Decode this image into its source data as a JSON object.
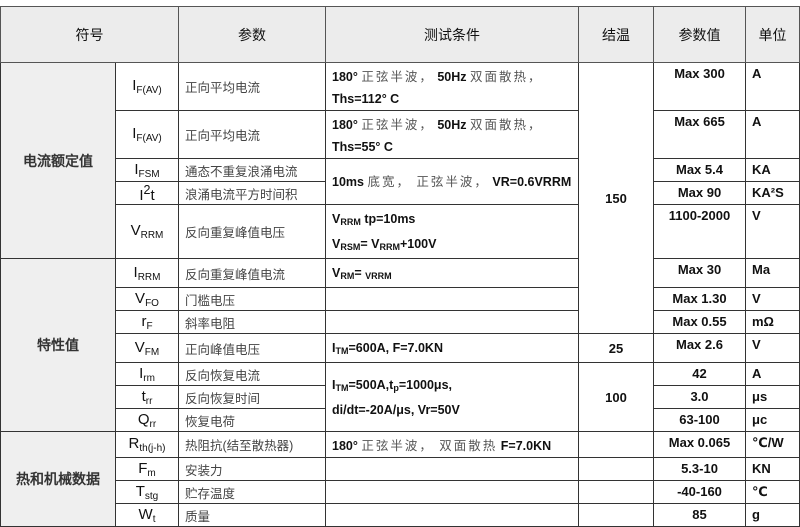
{
  "headers": [
    "符号",
    "参数",
    "测试条件",
    "结温",
    "参数值",
    "单位"
  ],
  "groups": {
    "rated_current": "电流额定值",
    "characteristics": "特性值",
    "thermal_mechanical": "热和机械数据"
  },
  "rows": [
    {
      "symbol": [
        {
          "t": "I"
        },
        {
          "t": "F(AV)",
          "sub": true
        }
      ],
      "param": "正向平均电流",
      "value": "Max 300",
      "unit": "A"
    },
    {
      "symbol": [
        {
          "t": "I"
        },
        {
          "t": "F(AV)",
          "sub": true
        }
      ],
      "param": "正向平均电流",
      "value": "Max 665",
      "unit": "A"
    },
    {
      "symbol": [
        {
          "t": "I"
        },
        {
          "t": "FSM",
          "sub": true
        }
      ],
      "param": "通态不重复浪涌电流",
      "value": "Max 5.4",
      "unit": "KA"
    },
    {
      "symbol": [
        {
          "t": "I"
        },
        {
          "t": "2",
          "sup": true
        },
        {
          "t": "t"
        }
      ],
      "param": "浪涌电流平方时间积",
      "value": "Max 90",
      "unit": "KA²S"
    },
    {
      "symbol": [
        {
          "t": "V"
        },
        {
          "t": "RRM",
          "sub": true
        }
      ],
      "param": "反向重复峰值电压",
      "value": "1100-2000",
      "unit": "V"
    },
    {
      "symbol": [
        {
          "t": "I"
        },
        {
          "t": "RRM",
          "sub": true
        }
      ],
      "param": "反向重复峰值电流",
      "value": "Max 30",
      "unit": "Ma"
    },
    {
      "symbol": [
        {
          "t": "V"
        },
        {
          "t": "FO",
          "sub": true
        }
      ],
      "param": "门槛电压",
      "value": "Max 1.30",
      "unit": "V"
    },
    {
      "symbol": [
        {
          "t": "r"
        },
        {
          "t": "F",
          "sub": true
        }
      ],
      "param": "斜率电阻",
      "value": "Max 0.55",
      "unit": "mΩ"
    },
    {
      "symbol": [
        {
          "t": "V"
        },
        {
          "t": "FM",
          "sub": true
        }
      ],
      "param": "正向峰值电压",
      "value": "Max 2.6",
      "unit": "V"
    },
    {
      "symbol": [
        {
          "t": "I"
        },
        {
          "t": "rm",
          "sub": true
        }
      ],
      "param": "反向恢复电流",
      "value": "42",
      "unit": "A"
    },
    {
      "symbol": [
        {
          "t": "t"
        },
        {
          "t": "rr",
          "sub": true
        }
      ],
      "param": "反向恢复时间",
      "value": "3.0",
      "unit": "μs"
    },
    {
      "symbol": [
        {
          "t": "Q"
        },
        {
          "t": "rr",
          "sub": true
        }
      ],
      "param": "恢复电荷",
      "value": "63-100",
      "unit": "μc"
    },
    {
      "symbol": [
        {
          "t": "R"
        },
        {
          "t": "th(j-h)",
          "sub": true
        }
      ],
      "param": "热阻抗(结至散热器)",
      "value": "Max 0.065",
      "unit": "℃/W"
    },
    {
      "symbol": [
        {
          "t": "F"
        },
        {
          "t": "m",
          "sub": true
        }
      ],
      "param": "安装力",
      "value": "5.3-10",
      "unit": "KN"
    },
    {
      "symbol": [
        {
          "t": "T"
        },
        {
          "t": "stg",
          "sub": true
        }
      ],
      "param": "贮存温度",
      "value": "-40-160",
      "unit": "℃"
    },
    {
      "symbol": [
        {
          "t": "W"
        },
        {
          "t": "t",
          "sub": true
        }
      ],
      "param": "质量",
      "value": "85",
      "unit": "g"
    }
  ],
  "conditions": {
    "c0": [
      [
        {
          "t": "180° "
        },
        {
          "t": "正弦半波，",
          "cn": true
        },
        {
          "t": "  50Hz "
        },
        {
          "t": "双面散热，",
          "cn": true
        }
      ],
      [
        {
          "t": "Ths=112° C"
        }
      ]
    ],
    "c1": [
      [
        {
          "t": "180° "
        },
        {
          "t": "正弦半波，",
          "cn": true
        },
        {
          "t": "  50Hz "
        },
        {
          "t": "双面散热，",
          "cn": true
        }
      ],
      [
        {
          "t": "Ths=55° C"
        }
      ]
    ],
    "c2": [
      [
        {
          "t": "10ms "
        },
        {
          "t": "底宽， 正弦半波，",
          "cn": true
        },
        {
          "t": "  VR=0.6VRRM"
        }
      ]
    ],
    "c4": [
      [
        {
          "t": "V"
        },
        {
          "t": "RRM",
          "sub": true
        },
        {
          "t": " tp=10ms"
        }
      ],
      [
        {
          "t": "V"
        },
        {
          "t": "RSM",
          "sub": true
        },
        {
          "t": "= V"
        },
        {
          "t": "RRM",
          "sub": true
        },
        {
          "t": "+100V"
        }
      ]
    ],
    "c5": [
      [
        {
          "t": "V"
        },
        {
          "t": "RM",
          "sub": true
        },
        {
          "t": "= "
        },
        {
          "t": "VRRM",
          "sub": true
        }
      ]
    ],
    "c8": [
      [
        {
          "t": "I"
        },
        {
          "t": "TM",
          "sub": true
        },
        {
          "t": "=600A, F=7.0KN"
        }
      ]
    ],
    "c9": [
      [
        {
          "t": "I"
        },
        {
          "t": "TM",
          "sub": true
        },
        {
          "t": "=500A,t"
        },
        {
          "t": "p",
          "sub": true
        },
        {
          "t": "=1000μs,"
        }
      ],
      [
        {
          "t": "di/dt=-20A/μs, Vr=50V"
        }
      ]
    ],
    "c12": [
      [
        {
          "t": "180° "
        },
        {
          "t": "正弦半波， 双面散热",
          "cn": true
        },
        {
          "t": " F=7.0KN"
        }
      ]
    ]
  },
  "junction_temps": {
    "t150": "150",
    "t25": "25",
    "t100": "100"
  }
}
